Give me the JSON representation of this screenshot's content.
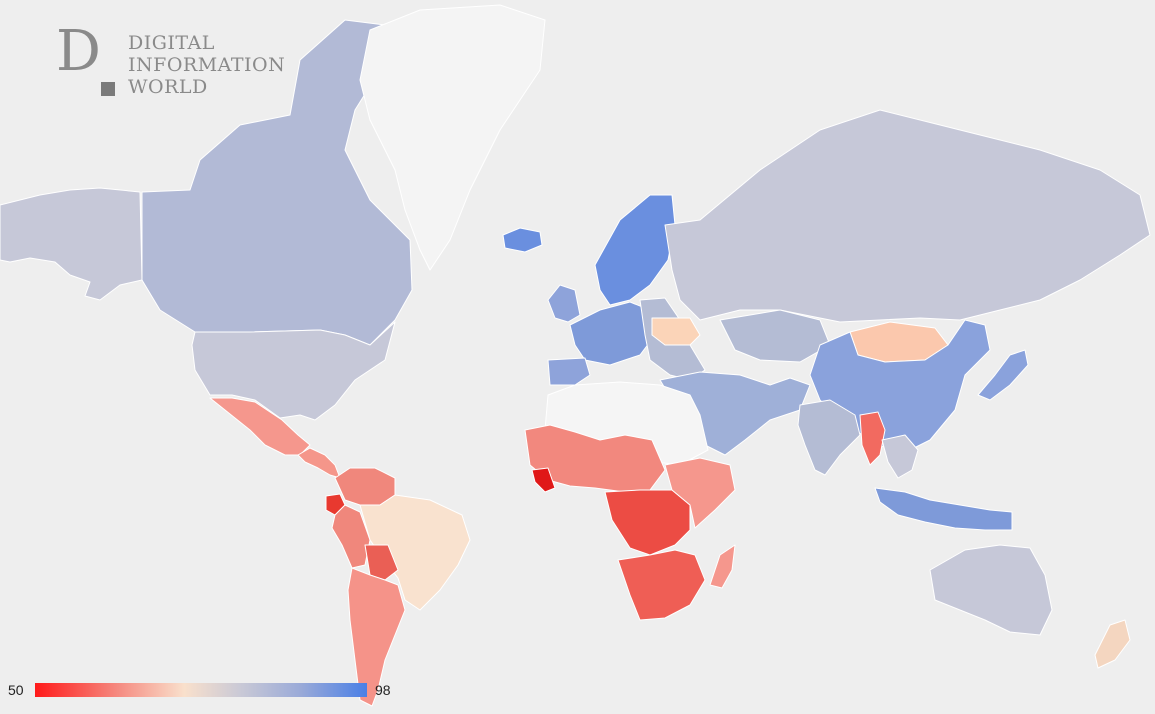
{
  "logo": {
    "letter": "D",
    "line1": "DIGITAL",
    "line2": "INFORMATION",
    "line3": "WORLD"
  },
  "legend": {
    "min": "50",
    "max": "98",
    "colors": [
      "#ff1a1a",
      "#f58a80",
      "#f9e0cc",
      "#c9c9d6",
      "#9aaad8",
      "#4a7fe6"
    ]
  },
  "colors": {
    "ocean": "#eeeeee",
    "no_data": "#f7f7f7",
    "border": "#ffffff"
  },
  "regions": [
    {
      "name": "alaska",
      "fill": "#c6c8d8"
    },
    {
      "name": "canada",
      "fill": "#b2bad6"
    },
    {
      "name": "greenland",
      "fill": "#f4f4f4"
    },
    {
      "name": "usa",
      "fill": "#c6c8d8"
    },
    {
      "name": "mexico",
      "fill": "#f5978d"
    },
    {
      "name": "central-america",
      "fill": "#f5968a"
    },
    {
      "name": "colombia-venezuela",
      "fill": "#f0877c"
    },
    {
      "name": "ecuador",
      "fill": "#e8392f"
    },
    {
      "name": "peru",
      "fill": "#f0877c"
    },
    {
      "name": "bolivia",
      "fill": "#ea5f55"
    },
    {
      "name": "brazil",
      "fill": "#f9e2cf"
    },
    {
      "name": "chile-argentina",
      "fill": "#f59389"
    },
    {
      "name": "iceland",
      "fill": "#6a8fdf"
    },
    {
      "name": "scandinavia",
      "fill": "#6a8fdf"
    },
    {
      "name": "uk",
      "fill": "#8ea3da"
    },
    {
      "name": "western-europe",
      "fill": "#7e9ad9"
    },
    {
      "name": "iberia",
      "fill": "#8ea3da"
    },
    {
      "name": "eastern-europe",
      "fill": "#b4bcd4"
    },
    {
      "name": "ukraine",
      "fill": "#fbd4b8"
    },
    {
      "name": "russia",
      "fill": "#c6c8d8"
    },
    {
      "name": "kazakhstan",
      "fill": "#b4bcd4"
    },
    {
      "name": "mongolia",
      "fill": "#fbc8ad"
    },
    {
      "name": "china",
      "fill": "#8aa2dc"
    },
    {
      "name": "japan",
      "fill": "#8aa2dc"
    },
    {
      "name": "middle-east",
      "fill": "#9fb0d8"
    },
    {
      "name": "india",
      "fill": "#b4bcd4"
    },
    {
      "name": "myanmar",
      "fill": "#f26a60"
    },
    {
      "name": "southeast-asia",
      "fill": "#c6c8d8"
    },
    {
      "name": "indonesia",
      "fill": "#7e9ad9"
    },
    {
      "name": "australia",
      "fill": "#c6c8d8"
    },
    {
      "name": "new-zealand",
      "fill": "#f4d6c0"
    },
    {
      "name": "north-africa",
      "fill": "#f5f5f5"
    },
    {
      "name": "west-africa",
      "fill": "#f2887e"
    },
    {
      "name": "liberia",
      "fill": "#e01818"
    },
    {
      "name": "central-africa",
      "fill": "#ec4c44"
    },
    {
      "name": "east-africa",
      "fill": "#f5978d"
    },
    {
      "name": "southern-africa",
      "fill": "#ef5e55"
    },
    {
      "name": "madagascar",
      "fill": "#f5978d"
    }
  ]
}
